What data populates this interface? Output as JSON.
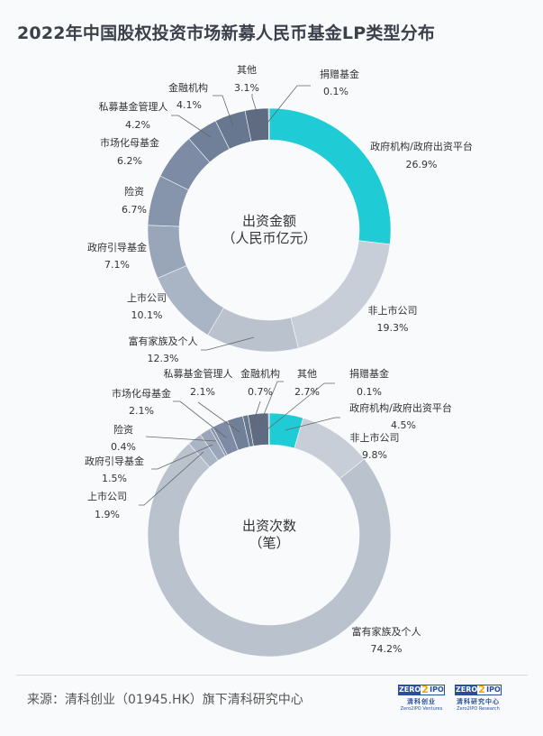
{
  "title": "2022年中国股权投资市场新募人民币基金LP类型分布",
  "chart_data": [
    {
      "type": "pie",
      "donut": true,
      "center_label": [
        "出资金额",
        "（人民币亿元）"
      ],
      "categories": [
        "政府机构/政府出资平台",
        "非上市公司",
        "富有家族及个人",
        "上市公司",
        "政府引导基金",
        "险资",
        "市场化母基金",
        "私募基金管理人",
        "金融机构",
        "其他",
        "捐赠基金"
      ],
      "values": [
        26.9,
        19.3,
        12.3,
        10.1,
        7.1,
        6.7,
        6.2,
        4.2,
        4.1,
        3.1,
        0.1
      ],
      "value_labels": [
        "26.9%",
        "19.3%",
        "12.3%",
        "10.1%",
        "7.1%",
        "6.7%",
        "6.2%",
        "4.2%",
        "4.1%",
        "3.1%",
        "0.1%"
      ]
    },
    {
      "type": "pie",
      "donut": true,
      "center_label": [
        "出资次数",
        "（笔）"
      ],
      "categories": [
        "政府机构/政府出资平台",
        "非上市公司",
        "富有家族及个人",
        "上市公司",
        "政府引导基金",
        "险资",
        "市场化母基金",
        "私募基金管理人",
        "金融机构",
        "其他",
        "捐赠基金"
      ],
      "values": [
        4.5,
        9.8,
        74.2,
        1.9,
        1.5,
        0.4,
        2.1,
        2.1,
        0.7,
        2.7,
        0.1
      ],
      "value_labels": [
        "4.5%",
        "9.8%",
        "74.2%",
        "1.9%",
        "1.5%",
        "0.4%",
        "2.1%",
        "2.1%",
        "0.7%",
        "2.7%",
        "0.1%"
      ]
    }
  ],
  "colors": [
    "#1fcbd4",
    "#c8ced8",
    "#bac2cd",
    "#a9b4c4",
    "#99a6b9",
    "#8795ac",
    "#7d8ca4",
    "#708098",
    "#67778f",
    "#5e6b81",
    "#596478"
  ],
  "footer": {
    "source": "来源：清科创业（01945.HK）旗下清科研究中心",
    "logos": [
      {
        "brand": "ZERO2IPO",
        "cn": "清科创业",
        "en": "Zero2IPO Ventures"
      },
      {
        "brand": "ZERO2IPO",
        "cn": "清科研究中心",
        "en": "Zero2IPO Research"
      }
    ]
  }
}
